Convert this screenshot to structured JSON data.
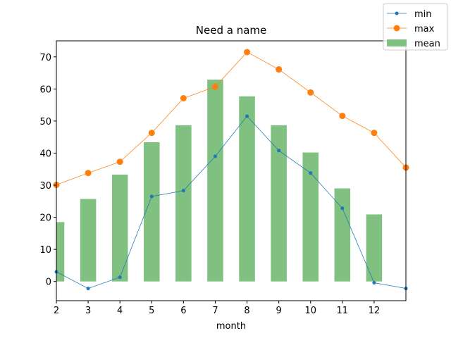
{
  "chart_data": {
    "type": "bar",
    "title": "Need a name",
    "xlabel": "month",
    "ylabel": "",
    "xlim": [
      2,
      13
    ],
    "ylim": [
      -6,
      75
    ],
    "x_ticks": [
      2,
      3,
      4,
      5,
      6,
      7,
      8,
      9,
      10,
      11,
      12
    ],
    "y_ticks": [
      0,
      10,
      20,
      30,
      40,
      50,
      60,
      70
    ],
    "grid": false,
    "legend_position": "top-right",
    "bars": {
      "name": "mean",
      "color": "#80c080",
      "x": [
        2,
        3,
        4,
        5,
        6,
        7,
        8,
        9,
        10,
        11,
        12
      ],
      "values": [
        18.5,
        25.7,
        33.3,
        43.4,
        48.7,
        62.9,
        57.7,
        48.7,
        40.2,
        29.0,
        20.9
      ]
    },
    "series": [
      {
        "name": "min",
        "color": "#1f77b4",
        "marker": "small-dot",
        "x": [
          2,
          3,
          4,
          5,
          6,
          7,
          8,
          9,
          10,
          11,
          12,
          13
        ],
        "values": [
          3.0,
          -2.2,
          1.3,
          26.5,
          28.3,
          39.0,
          51.5,
          40.8,
          33.8,
          22.8,
          -0.4,
          -2.2
        ]
      },
      {
        "name": "max",
        "color": "#ff7f0e",
        "marker": "large-dot",
        "x": [
          2,
          3,
          4,
          5,
          6,
          7,
          8,
          9,
          10,
          11,
          12,
          13
        ],
        "values": [
          30.1,
          33.8,
          37.3,
          46.3,
          57.1,
          60.7,
          71.5,
          66.1,
          58.9,
          51.6,
          46.3,
          35.5
        ]
      }
    ]
  }
}
